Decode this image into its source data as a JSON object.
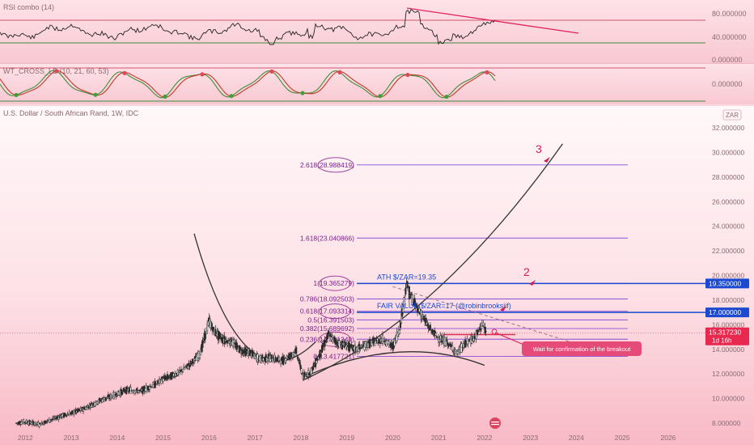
{
  "panels": {
    "rsi": {
      "title": "RSI combo (14)",
      "ticks": [
        "80.000000",
        "40.000000",
        "0.000000"
      ]
    },
    "wave": {
      "title": "WT_CROSS_LB (10, 21, 60, 53)",
      "ticks": [
        "0.000000"
      ]
    }
  },
  "main": {
    "title": "U.S. Dollar / South African Rand, 1W, IDC",
    "currency_badge": "ZAR",
    "price_badge": "15.317230",
    "timer_badge": "1d 16h",
    "y_ticks": [
      "32.000000",
      "30.000000",
      "28.000000",
      "26.000000",
      "24.000000",
      "22.000000",
      "20.000000",
      "18.000000",
      "16.000000",
      "14.000000",
      "12.000000",
      "10.000000",
      "8.000000"
    ],
    "x_ticks": [
      "2012",
      "2013",
      "2014",
      "2015",
      "2016",
      "2017",
      "2018",
      "2019",
      "2020",
      "2021",
      "2022",
      "2023",
      "2024",
      "2025",
      "2026"
    ]
  },
  "annotations": {
    "ath_label": "ATH $/ZAR=19.35",
    "ath_badge": "19.350000",
    "fair_label": "FAIR VALUE $/ZAR=17 (@robinbrooksiif)",
    "fair_badge": "17.000000",
    "callout": "Wait for confirmation of the breakout",
    "num1": "3",
    "num2": "2"
  },
  "fib_levels": [
    {
      "label": "2.618(28.988419)",
      "value": 28.988419
    },
    {
      "label": "1.618(23.040866)",
      "value": 23.040866
    },
    {
      "label": "1(19.365279)",
      "value": 19.365279
    },
    {
      "label": "0.786(18.092503)",
      "value": 18.092503
    },
    {
      "label": "0.618(17.093314)",
      "value": 17.093314
    },
    {
      "label": "0.5(16.391503)",
      "value": 16.391503
    },
    {
      "label": "0.382(15.689692)",
      "value": 15.689692
    },
    {
      "label": "0.236(14.821349)",
      "value": 14.821349
    },
    {
      "label": "0(13.417721)",
      "value": 13.417721
    }
  ],
  "chart_data": {
    "type": "line",
    "title": "U.S. Dollar / South African Rand, 1W, IDC",
    "xlabel": "",
    "ylabel": "",
    "xlim": [
      2011.8,
      2026.6
    ],
    "ylim": [
      7.6,
      32.6
    ],
    "series": [
      {
        "values": [
          [
            2011.8,
            8.0
          ],
          [
            2012.0,
            8.1
          ],
          [
            2012.3,
            7.9
          ],
          [
            2012.5,
            8.2
          ],
          [
            2012.8,
            8.6
          ],
          [
            2013.0,
            8.8
          ],
          [
            2013.3,
            9.2
          ],
          [
            2013.6,
            9.8
          ],
          [
            2013.9,
            10.2
          ],
          [
            2014.2,
            10.7
          ],
          [
            2014.5,
            10.6
          ],
          [
            2014.8,
            11.1
          ],
          [
            2015.0,
            11.6
          ],
          [
            2015.3,
            12.0
          ],
          [
            2015.6,
            12.8
          ],
          [
            2015.8,
            13.6
          ],
          [
            2016.0,
            16.3
          ],
          [
            2016.1,
            15.5
          ],
          [
            2016.3,
            14.8
          ],
          [
            2016.5,
            14.6
          ],
          [
            2016.7,
            13.9
          ],
          [
            2016.9,
            13.7
          ],
          [
            2017.1,
            13.2
          ],
          [
            2017.3,
            13.3
          ],
          [
            2017.6,
            13.1
          ],
          [
            2017.9,
            13.8
          ],
          [
            2018.05,
            11.8
          ],
          [
            2018.2,
            12.1
          ],
          [
            2018.4,
            13.5
          ],
          [
            2018.6,
            15.2
          ],
          [
            2018.8,
            14.5
          ],
          [
            2019.0,
            14.3
          ],
          [
            2019.2,
            14.0
          ],
          [
            2019.5,
            14.5
          ],
          [
            2019.8,
            14.8
          ],
          [
            2020.0,
            14.2
          ],
          [
            2020.15,
            15.6
          ],
          [
            2020.3,
            19.3
          ],
          [
            2020.4,
            18.2
          ],
          [
            2020.6,
            17.0
          ],
          [
            2020.8,
            15.7
          ],
          [
            2021.0,
            14.9
          ],
          [
            2021.2,
            14.5
          ],
          [
            2021.4,
            13.7
          ],
          [
            2021.6,
            14.5
          ],
          [
            2021.8,
            15.0
          ],
          [
            2021.95,
            16.1
          ],
          [
            2022.05,
            15.3
          ]
        ]
      }
    ]
  }
}
